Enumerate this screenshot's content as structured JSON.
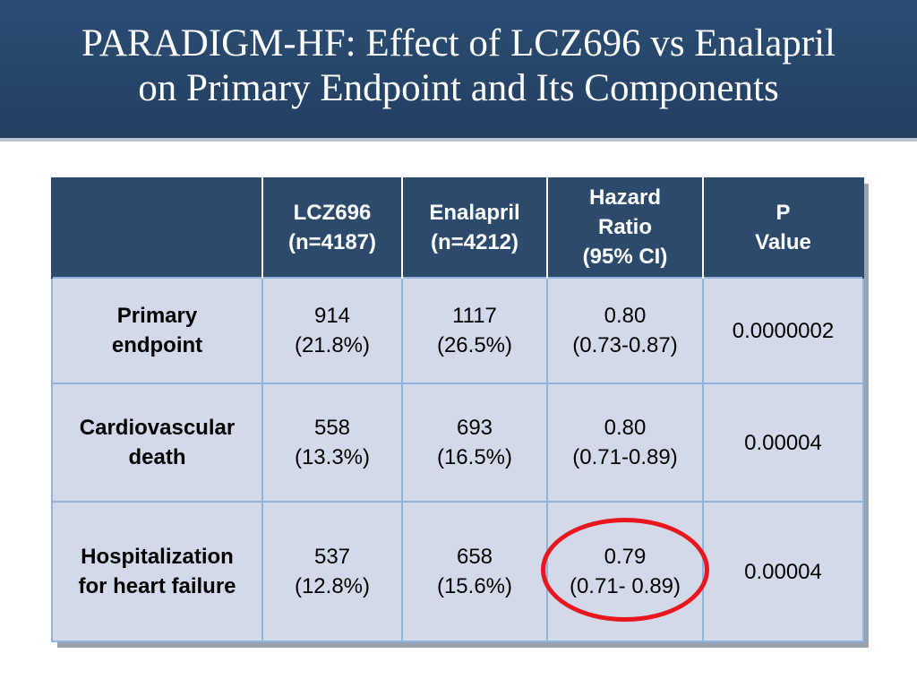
{
  "title": {
    "line1": "PARADIGM-HF: Effect of LCZ696 vs Enalapril",
    "line2": "on Primary Endpoint and Its Components"
  },
  "table": {
    "headers": [
      {
        "lines": [
          ""
        ]
      },
      {
        "lines": [
          "LCZ696",
          "(n=4187)"
        ]
      },
      {
        "lines": [
          "Enalapril",
          "(n=4212)"
        ]
      },
      {
        "lines": [
          "Hazard",
          "Ratio",
          "(95% CI)"
        ]
      },
      {
        "lines": [
          "P",
          "Value"
        ]
      }
    ],
    "rows": [
      {
        "label": [
          "Primary",
          "endpoint"
        ],
        "lcz696": [
          "914",
          "(21.8%)"
        ],
        "enalapril": [
          "1117",
          "(26.5%)"
        ],
        "hazard_ratio": [
          "0.80",
          "(0.73-0.87)"
        ],
        "p_value": "0.0000002"
      },
      {
        "label": [
          "Cardiovascular",
          "death"
        ],
        "lcz696": [
          "558",
          "(13.3%)"
        ],
        "enalapril": [
          "693",
          "(16.5%)"
        ],
        "hazard_ratio": [
          "0.80",
          "(0.71-0.89)"
        ],
        "p_value": "0.00004"
      },
      {
        "label": [
          "Hospitalization",
          "for heart failure"
        ],
        "lcz696": [
          "537",
          "(12.8%)"
        ],
        "enalapril": [
          "658",
          "(15.6%)"
        ],
        "hazard_ratio": [
          "0.79",
          "(0.71- 0.89)"
        ],
        "p_value": "0.00004"
      }
    ]
  },
  "colors": {
    "title_bar": "#2b4d74",
    "header_row": "#2c4b6c",
    "body_cell": "#d3d9e8",
    "grid_line": "#8fb4e0",
    "highlight": "#e8161d"
  }
}
